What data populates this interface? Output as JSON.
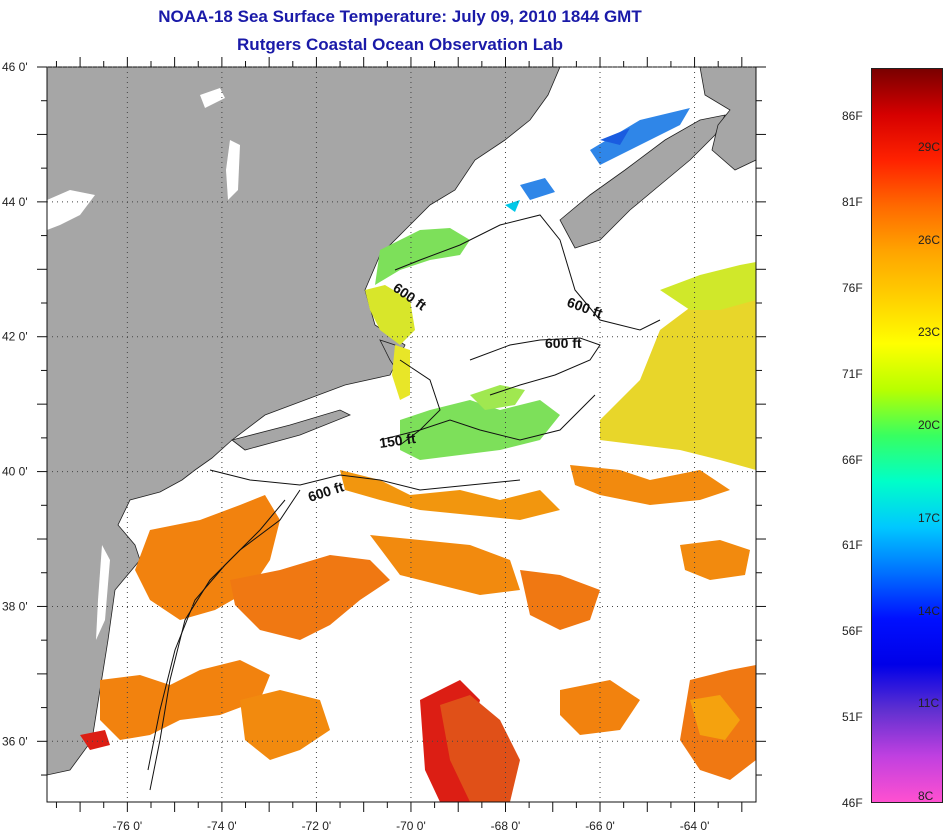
{
  "title": {
    "line1": "NOAA-18 Sea Surface Temperature:  July 09, 2010 1844 GMT",
    "line2": "Rutgers Coastal Ocean Observation Lab"
  },
  "axes": {
    "longitude_labels": [
      "-76 0'",
      "-74 0'",
      "-72 0'",
      "-70 0'",
      "-68 0'",
      "-66 0'",
      "-64 0'"
    ],
    "longitude_values": [
      -76,
      -74,
      -72,
      -70,
      -68,
      -66,
      -64
    ],
    "latitude_labels": [
      "46 0'",
      "44 0'",
      "42 0'",
      "40 0'",
      "38 0'",
      "36 0'"
    ],
    "latitude_values": [
      46,
      44,
      42,
      40,
      38,
      36
    ],
    "lon_range": [
      -77.7,
      -62.7
    ],
    "lat_range": [
      35.1,
      46.0
    ]
  },
  "contours": {
    "labels": [
      "600 ft",
      "600 ft",
      "600 ft",
      "150 ft",
      "600 ft"
    ]
  },
  "colorbar": {
    "fahrenheit_labels": [
      "86F",
      "81F",
      "76F",
      "71F",
      "66F",
      "61F",
      "56F",
      "51F",
      "46F"
    ],
    "celsius_labels": [
      "29C",
      "26C",
      "23C",
      "20C",
      "17C",
      "14C",
      "11C",
      "8C"
    ],
    "gradient": [
      "#7a0000",
      "#d60000",
      "#ff2200",
      "#ff6a00",
      "#ffa500",
      "#ffd000",
      "#ffff00",
      "#b8ff00",
      "#38ff60",
      "#00ffc8",
      "#00c8ff",
      "#0070ff",
      "#0010ff",
      "#0000e8",
      "#6030d0",
      "#c040e0",
      "#ff50d0"
    ]
  },
  "colors": {
    "land": "#a6a6a6",
    "water_cloud": "#ffffff",
    "orange": "#f2820e",
    "red": "#dc1e14",
    "yellow": "#e8e628",
    "green": "#7de05a",
    "blue": "#2f86e8",
    "title": "#1a1aa8"
  }
}
